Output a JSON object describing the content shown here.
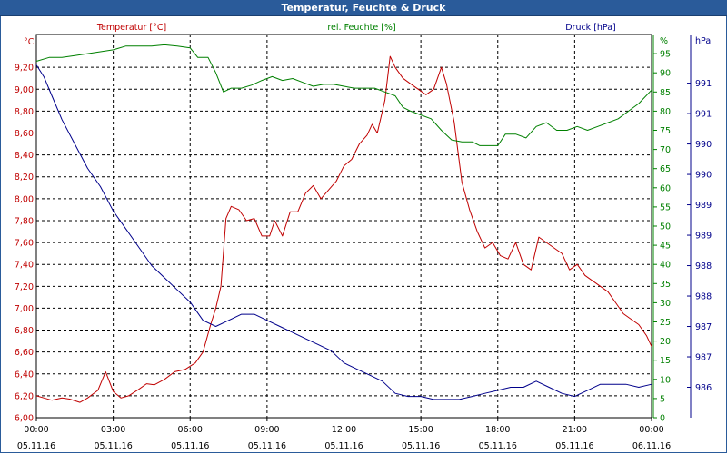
{
  "window": {
    "title": "Temperatur, Feuchte & Druck"
  },
  "colors": {
    "temperature": "#c00000",
    "humidity": "#008000",
    "pressure": "#00008b",
    "grid": "#000000",
    "frame": "#2a5b9a"
  },
  "chart_data": {
    "type": "line",
    "grid": true,
    "x_ticks": [
      {
        "time": "00:00",
        "date": "05.11.16"
      },
      {
        "time": "03:00",
        "date": "05.11.16"
      },
      {
        "time": "06:00",
        "date": "05.11.16"
      },
      {
        "time": "09:00",
        "date": "05.11.16"
      },
      {
        "time": "12:00",
        "date": "05.11.16"
      },
      {
        "time": "15:00",
        "date": "05.11.16"
      },
      {
        "time": "18:00",
        "date": "05.11.16"
      },
      {
        "time": "21:00",
        "date": "05.11.16"
      },
      {
        "time": "00:00",
        "date": "06.11.16"
      }
    ],
    "x_range_hours": [
      0,
      24
    ],
    "axes": {
      "temperature": {
        "label": "Temperatur [°C]",
        "unit": "°C",
        "range": [
          6.0,
          9.5
        ],
        "ticks": [
          "6,00",
          "6,20",
          "6,40",
          "6,60",
          "6,80",
          "7,00",
          "7,20",
          "7,40",
          "7,60",
          "7,80",
          "8,00",
          "8,20",
          "8,40",
          "8,60",
          "8,80",
          "9,00",
          "9,20"
        ]
      },
      "humidity": {
        "label": "rel. Feuchte [%]",
        "unit": "%",
        "range": [
          0,
          100
        ],
        "ticks": [
          "0",
          "5",
          "10",
          "15",
          "20",
          "25",
          "30",
          "35",
          "40",
          "45",
          "50",
          "55",
          "60",
          "65",
          "70",
          "75",
          "80",
          "85",
          "90",
          "95"
        ]
      },
      "pressure": {
        "label": "Druck [hPa]",
        "unit": "hPa",
        "range": [
          985.5,
          991.8
        ],
        "ticks": [
          "986",
          "987",
          "987",
          "988",
          "988",
          "989",
          "989",
          "990",
          "990",
          "991",
          "991"
        ]
      }
    },
    "series": [
      {
        "name": "Temperatur [°C]",
        "axis": "temperature",
        "points": [
          [
            0,
            6.2
          ],
          [
            0.3,
            6.18
          ],
          [
            0.6,
            6.16
          ],
          [
            1,
            6.18
          ],
          [
            1.3,
            6.17
          ],
          [
            1.7,
            6.14
          ],
          [
            2,
            6.18
          ],
          [
            2.4,
            6.25
          ],
          [
            2.7,
            6.42
          ],
          [
            3,
            6.24
          ],
          [
            3.3,
            6.18
          ],
          [
            3.6,
            6.2
          ],
          [
            4,
            6.26
          ],
          [
            4.3,
            6.31
          ],
          [
            4.6,
            6.3
          ],
          [
            5,
            6.35
          ],
          [
            5.4,
            6.42
          ],
          [
            5.8,
            6.44
          ],
          [
            6.2,
            6.5
          ],
          [
            6.5,
            6.6
          ],
          [
            6.8,
            6.85
          ],
          [
            7,
            7.0
          ],
          [
            7.2,
            7.2
          ],
          [
            7.4,
            7.82
          ],
          [
            7.6,
            7.93
          ],
          [
            7.9,
            7.9
          ],
          [
            8.2,
            7.8
          ],
          [
            8.5,
            7.82
          ],
          [
            8.8,
            7.66
          ],
          [
            9.1,
            7.66
          ],
          [
            9.3,
            7.8
          ],
          [
            9.6,
            7.66
          ],
          [
            9.9,
            7.88
          ],
          [
            10.2,
            7.88
          ],
          [
            10.5,
            8.05
          ],
          [
            10.8,
            8.12
          ],
          [
            11.1,
            8.0
          ],
          [
            11.4,
            8.08
          ],
          [
            11.7,
            8.16
          ],
          [
            12,
            8.3
          ],
          [
            12.3,
            8.36
          ],
          [
            12.6,
            8.5
          ],
          [
            12.9,
            8.58
          ],
          [
            13.1,
            8.68
          ],
          [
            13.3,
            8.6
          ],
          [
            13.6,
            8.9
          ],
          [
            13.8,
            9.3
          ],
          [
            14,
            9.2
          ],
          [
            14.3,
            9.1
          ],
          [
            14.6,
            9.05
          ],
          [
            14.9,
            9.0
          ],
          [
            15.2,
            8.95
          ],
          [
            15.5,
            9.0
          ],
          [
            15.8,
            9.2
          ],
          [
            16,
            9.05
          ],
          [
            16.3,
            8.7
          ],
          [
            16.6,
            8.15
          ],
          [
            16.9,
            7.9
          ],
          [
            17.2,
            7.7
          ],
          [
            17.5,
            7.55
          ],
          [
            17.8,
            7.6
          ],
          [
            18.1,
            7.48
          ],
          [
            18.4,
            7.45
          ],
          [
            18.7,
            7.6
          ],
          [
            19,
            7.4
          ],
          [
            19.3,
            7.35
          ],
          [
            19.6,
            7.65
          ],
          [
            19.9,
            7.6
          ],
          [
            20.2,
            7.55
          ],
          [
            20.5,
            7.5
          ],
          [
            20.8,
            7.35
          ],
          [
            21.1,
            7.4
          ],
          [
            21.4,
            7.3
          ],
          [
            21.7,
            7.25
          ],
          [
            22,
            7.2
          ],
          [
            22.3,
            7.15
          ],
          [
            22.6,
            7.05
          ],
          [
            22.9,
            6.95
          ],
          [
            23.2,
            6.9
          ],
          [
            23.5,
            6.85
          ],
          [
            23.8,
            6.75
          ],
          [
            24,
            6.65
          ]
        ]
      },
      {
        "name": "rel. Feuchte [%]",
        "axis": "humidity",
        "points": [
          [
            0,
            93
          ],
          [
            0.5,
            94
          ],
          [
            1,
            94
          ],
          [
            1.5,
            94.5
          ],
          [
            2,
            95
          ],
          [
            2.5,
            95.5
          ],
          [
            3,
            96
          ],
          [
            3.5,
            97
          ],
          [
            4,
            97
          ],
          [
            4.5,
            97
          ],
          [
            5,
            97.3
          ],
          [
            5.5,
            97
          ],
          [
            6,
            96.5
          ],
          [
            6.3,
            94
          ],
          [
            6.7,
            94
          ],
          [
            7,
            90
          ],
          [
            7.3,
            85
          ],
          [
            7.6,
            86
          ],
          [
            8,
            86
          ],
          [
            8.4,
            86.8
          ],
          [
            8.8,
            88
          ],
          [
            9.2,
            89
          ],
          [
            9.6,
            88
          ],
          [
            10,
            88.5
          ],
          [
            10.4,
            87.5
          ],
          [
            10.8,
            86.5
          ],
          [
            11.2,
            87
          ],
          [
            11.6,
            87
          ],
          [
            12,
            86.5
          ],
          [
            12.4,
            86
          ],
          [
            12.8,
            86
          ],
          [
            13.2,
            86
          ],
          [
            13.6,
            85
          ],
          [
            14,
            84
          ],
          [
            14.3,
            81
          ],
          [
            14.6,
            80
          ],
          [
            15,
            79
          ],
          [
            15.4,
            78
          ],
          [
            15.8,
            75
          ],
          [
            16.2,
            72.5
          ],
          [
            16.6,
            72
          ],
          [
            17,
            72
          ],
          [
            17.3,
            71
          ],
          [
            17.7,
            71
          ],
          [
            18,
            71
          ],
          [
            18.3,
            74
          ],
          [
            18.7,
            74
          ],
          [
            19.1,
            73
          ],
          [
            19.5,
            76
          ],
          [
            19.9,
            77
          ],
          [
            20.3,
            75
          ],
          [
            20.7,
            75
          ],
          [
            21.1,
            76
          ],
          [
            21.5,
            75
          ],
          [
            21.9,
            76
          ],
          [
            22.3,
            77
          ],
          [
            22.7,
            78
          ],
          [
            23.1,
            80
          ],
          [
            23.5,
            82
          ],
          [
            24,
            85.5
          ]
        ]
      },
      {
        "name": "Druck [hPa]",
        "axis": "pressure",
        "points": [
          [
            0,
            991.3
          ],
          [
            0.3,
            991.1
          ],
          [
            0.6,
            990.8
          ],
          [
            1,
            990.4
          ],
          [
            1.5,
            990.0
          ],
          [
            2,
            989.6
          ],
          [
            2.5,
            989.3
          ],
          [
            3,
            988.9
          ],
          [
            3.5,
            988.6
          ],
          [
            4,
            988.3
          ],
          [
            4.5,
            988.0
          ],
          [
            5,
            987.8
          ],
          [
            5.5,
            987.6
          ],
          [
            6,
            987.4
          ],
          [
            6.5,
            987.1
          ],
          [
            7,
            987.0
          ],
          [
            7.5,
            987.1
          ],
          [
            8,
            987.2
          ],
          [
            8.5,
            987.2
          ],
          [
            9,
            987.1
          ],
          [
            9.5,
            987.0
          ],
          [
            10,
            986.9
          ],
          [
            10.5,
            986.8
          ],
          [
            11,
            986.7
          ],
          [
            11.5,
            986.6
          ],
          [
            12,
            986.4
          ],
          [
            12.5,
            986.3
          ],
          [
            13,
            986.2
          ],
          [
            13.5,
            986.1
          ],
          [
            14,
            985.9
          ],
          [
            14.5,
            985.85
          ],
          [
            15,
            985.85
          ],
          [
            15.5,
            985.8
          ],
          [
            16,
            985.8
          ],
          [
            16.5,
            985.8
          ],
          [
            17,
            985.85
          ],
          [
            17.5,
            985.9
          ],
          [
            18,
            985.95
          ],
          [
            18.5,
            986.0
          ],
          [
            19,
            986.0
          ],
          [
            19.5,
            986.1
          ],
          [
            20,
            986.0
          ],
          [
            20.5,
            985.9
          ],
          [
            21,
            985.85
          ],
          [
            21.5,
            985.95
          ],
          [
            22,
            986.05
          ],
          [
            22.5,
            986.05
          ],
          [
            23,
            986.05
          ],
          [
            23.5,
            986.0
          ],
          [
            24,
            986.05
          ]
        ]
      }
    ]
  }
}
